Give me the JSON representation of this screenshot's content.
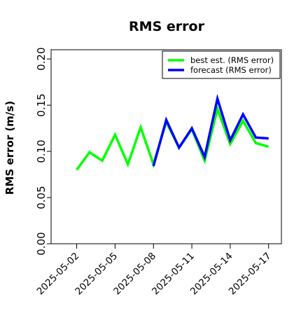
{
  "chart_data": {
    "type": "line",
    "title": "RMS error",
    "xlabel": "",
    "ylabel": "RMS error (m/s)",
    "x": [
      "2025-05-02",
      "2025-05-03",
      "2025-05-04",
      "2025-05-05",
      "2025-05-06",
      "2025-05-07",
      "2025-05-08",
      "2025-05-09",
      "2025-05-10",
      "2025-05-11",
      "2025-05-12",
      "2025-05-13",
      "2025-05-14",
      "2025-05-15",
      "2025-05-16",
      "2025-05-17"
    ],
    "xlim": [
      "2025-04-30",
      "2025-05-18"
    ],
    "ylim": [
      0.0,
      0.21
    ],
    "x_tick_labels": [
      "2025-05-02",
      "2025-05-05",
      "2025-05-08",
      "2025-05-11",
      "2025-05-14",
      "2025-05-17"
    ],
    "x_tick_colors": [
      "#000000",
      "#000000",
      "#228B22",
      "#000000",
      "#000000",
      "#000000"
    ],
    "y_tick_labels": [
      "0.00",
      "0.05",
      "0.10",
      "0.15",
      "0.20"
    ],
    "y_tick_values": [
      0.0,
      0.05,
      0.1,
      0.15,
      0.2
    ],
    "grid": false,
    "legend_position": "top-right",
    "series": [
      {
        "name": "best est. (RMS error)",
        "color": "#00ff00",
        "values": [
          0.08,
          0.099,
          0.09,
          0.118,
          0.086,
          0.126,
          0.086,
          0.132,
          0.104,
          0.124,
          0.09,
          0.146,
          0.108,
          0.133,
          0.109,
          0.105
        ]
      },
      {
        "name": "forecast (RMS error)",
        "color": "#0000ff",
        "values": [
          null,
          null,
          null,
          null,
          null,
          null,
          0.084,
          0.134,
          0.104,
          0.125,
          0.094,
          0.157,
          0.112,
          0.14,
          0.115,
          0.114
        ]
      }
    ]
  }
}
